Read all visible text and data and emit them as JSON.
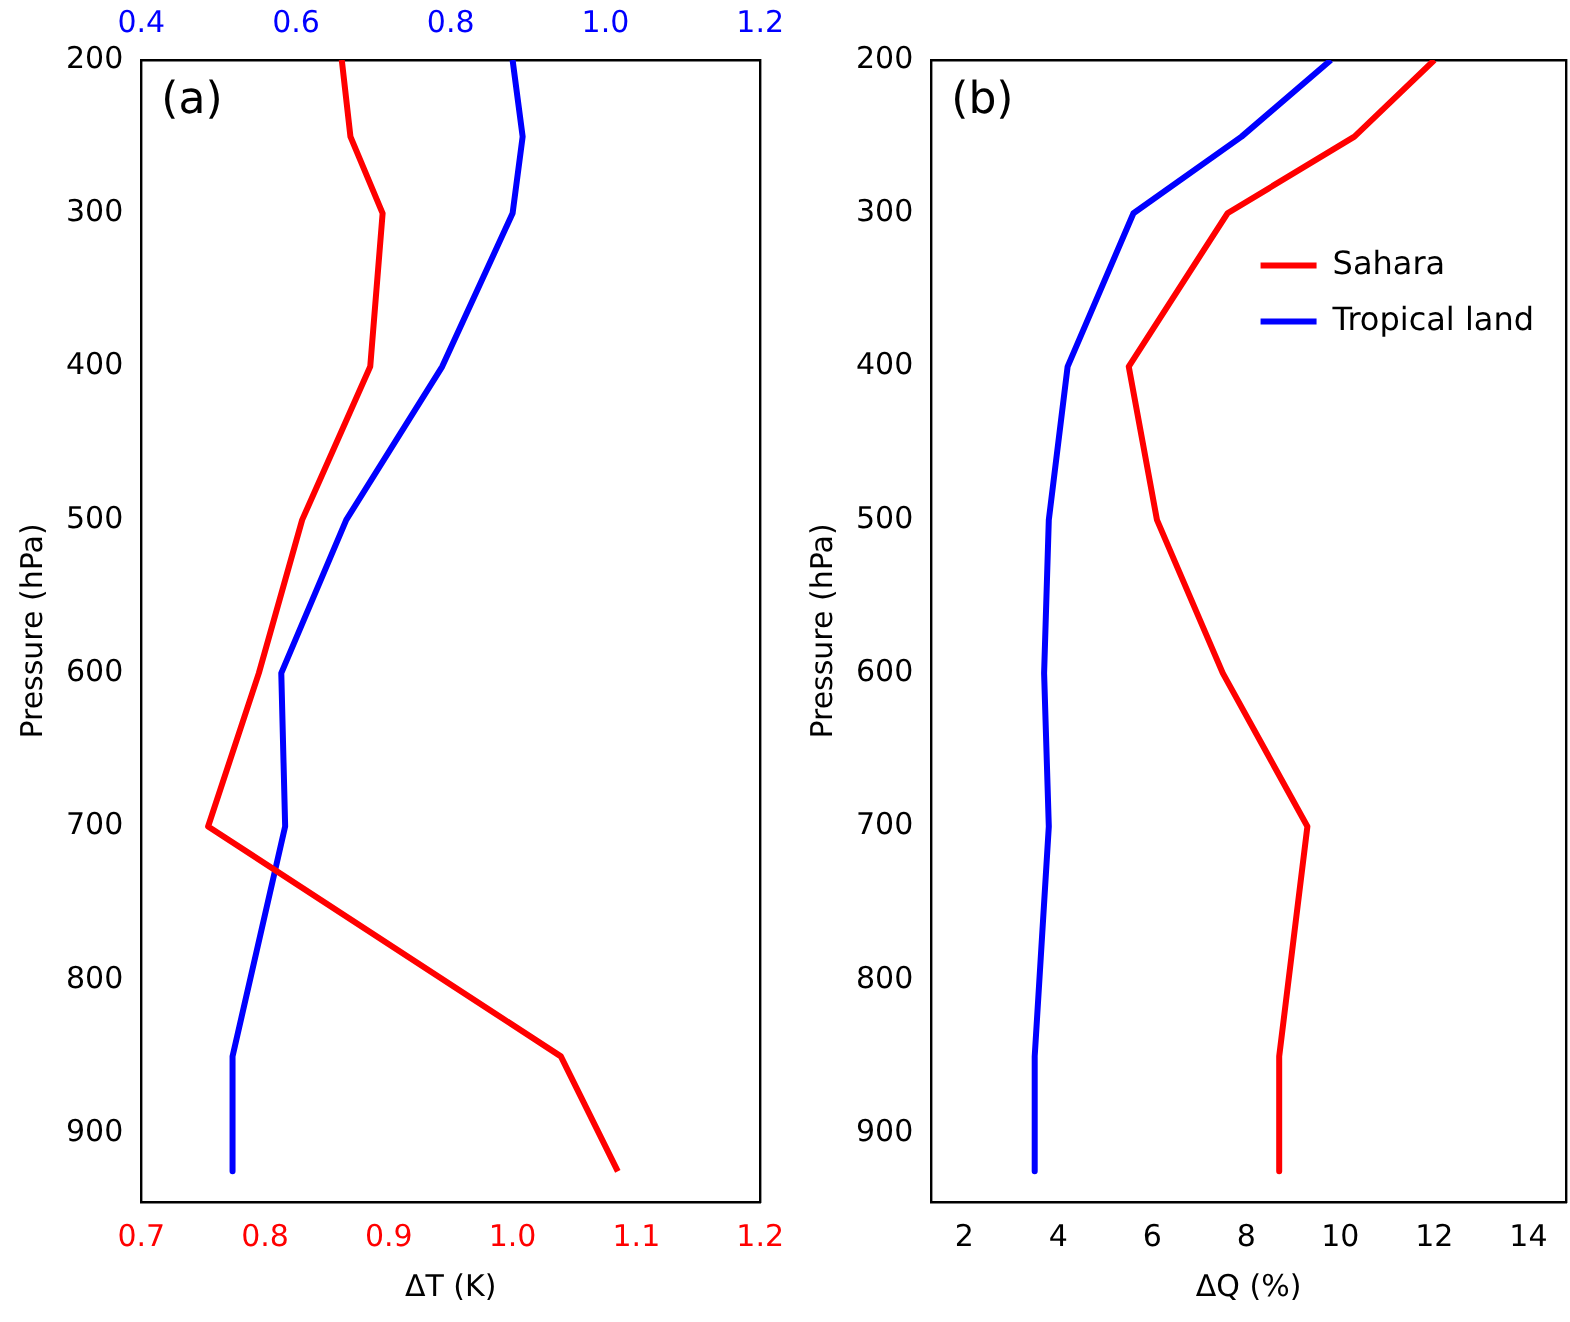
{
  "chart_data": [
    {
      "type": "line",
      "xlabel": "ΔT (K)",
      "ylabel": "Pressure (hPa)",
      "annotations": [
        "(a)"
      ],
      "xlim": [
        0.7,
        1.2
      ],
      "xticks": [
        {
          "value": 0.7,
          "label": "0.7"
        },
        {
          "value": 0.8,
          "label": "0.8"
        },
        {
          "value": 0.9,
          "label": "0.9"
        },
        {
          "value": 1.0,
          "label": "1.0"
        },
        {
          "value": 1.1,
          "label": "1.1"
        },
        {
          "value": 1.2,
          "label": "1.2"
        }
      ],
      "x2lim": [
        0.4,
        1.2
      ],
      "x2ticks": [
        {
          "value": 0.4,
          "label": "0.4"
        },
        {
          "value": 0.6,
          "label": "0.6"
        },
        {
          "value": 0.8,
          "label": "0.8"
        },
        {
          "value": 1.0,
          "label": "1.0"
        },
        {
          "value": 1.2,
          "label": "1.2"
        }
      ],
      "ylim": [
        945,
        200
      ],
      "yticks": [
        200,
        300,
        400,
        500,
        600,
        700,
        800,
        900
      ],
      "legend": false,
      "series": [
        {
          "color": "#ff0000",
          "x": [
            0.862,
            0.869,
            0.895,
            0.885,
            0.83,
            0.795,
            0.754,
            1.039,
            1.085
          ],
          "values": [
            200,
            250,
            300,
            400,
            500,
            600,
            700,
            850,
            925
          ]
        },
        {
          "color": "#0000ff",
          "axis": "x2",
          "x": [
            0.88,
            0.893,
            0.88,
            0.789,
            0.665,
            0.581,
            0.586,
            0.518,
            0.518
          ],
          "values": [
            200,
            250,
            300,
            400,
            500,
            600,
            700,
            850,
            925
          ]
        }
      ]
    },
    {
      "type": "line",
      "xlabel": "ΔQ (%)",
      "ylabel": "Pressure (hPa)",
      "annotations": [
        "(b)"
      ],
      "xlim": [
        1.3,
        14.8
      ],
      "xticks": [
        2,
        4,
        6,
        8,
        10,
        12,
        14
      ],
      "ylim": [
        945,
        200
      ],
      "yticks": [
        200,
        300,
        400,
        500,
        600,
        700,
        800,
        900
      ],
      "legend": "top right",
      "series": [
        {
          "name": "Sahara",
          "color": "#ff0000",
          "x": [
            12.0,
            10.3,
            7.6,
            5.5,
            6.1,
            7.5,
            9.3,
            8.7,
            8.7
          ],
          "values": [
            200,
            250,
            300,
            400,
            500,
            600,
            700,
            850,
            925
          ]
        },
        {
          "name": "Tropical land",
          "color": "#0000ff",
          "x": [
            9.8,
            7.9,
            5.6,
            4.2,
            3.8,
            3.7,
            3.8,
            3.5,
            3.5
          ],
          "values": [
            200,
            250,
            300,
            400,
            500,
            600,
            700,
            850,
            925
          ]
        }
      ]
    }
  ]
}
